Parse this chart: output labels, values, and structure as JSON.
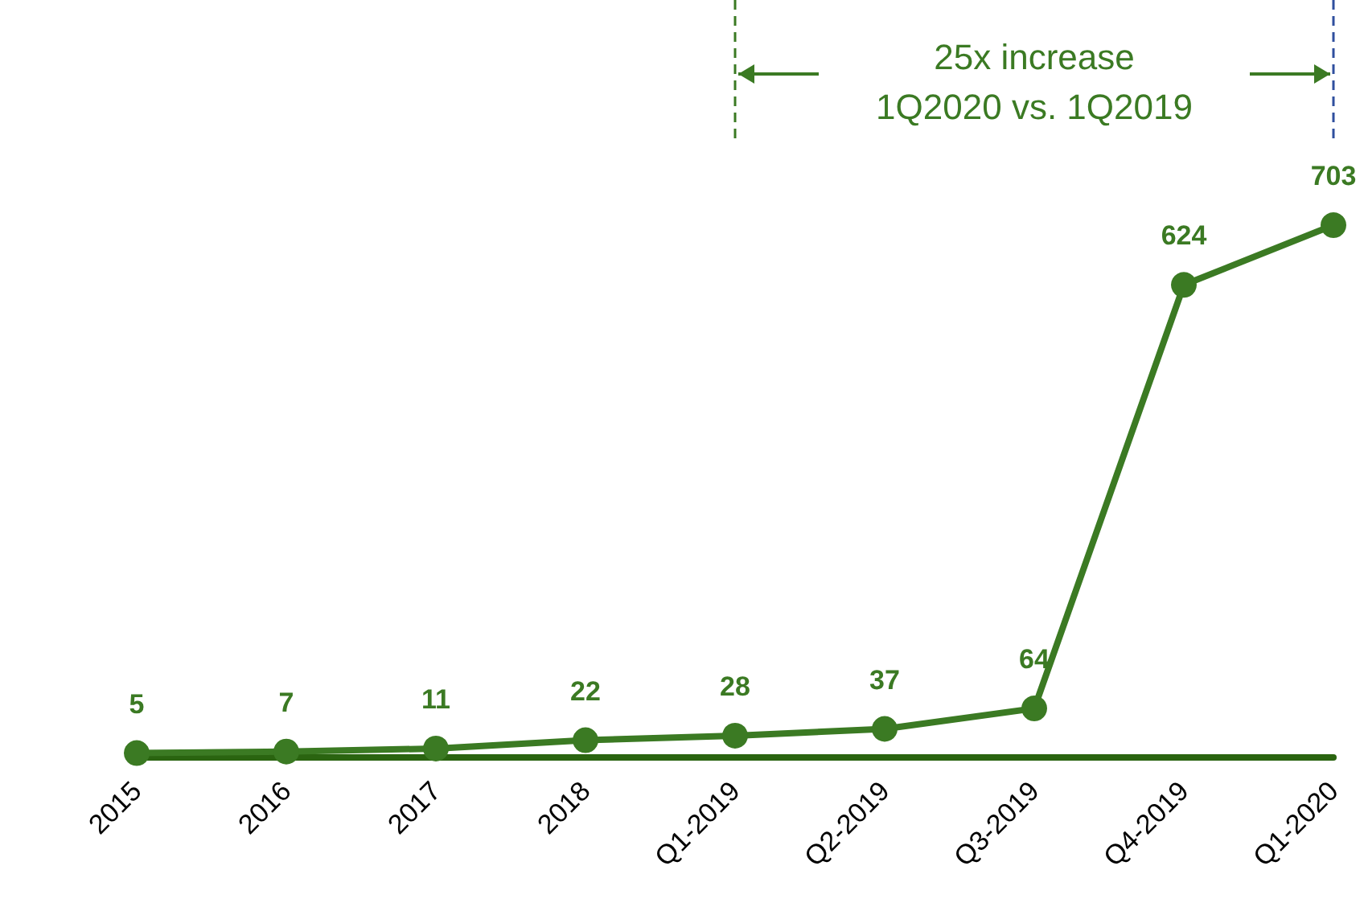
{
  "chart_data": {
    "type": "line",
    "categories": [
      "2015",
      "2016",
      "2017",
      "2018",
      "Q1-2019",
      "Q2-2019",
      "Q3-2019",
      "Q4-2019",
      "Q1-2020"
    ],
    "series": [
      {
        "color": "#3b7a23",
        "values": [
          5,
          7,
          11,
          22,
          28,
          37,
          64,
          624,
          703
        ]
      }
    ],
    "data_labels": true,
    "marker": "circle",
    "line_style": "solid",
    "grid": false,
    "tick_labels": "x",
    "annotations": [
      "25x increase\n1Q2020 vs. 1Q2019"
    ]
  }
}
